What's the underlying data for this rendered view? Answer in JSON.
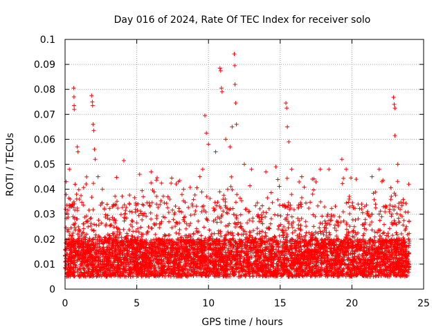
{
  "chart_data": {
    "type": "scatter",
    "title": "Day 016 of 2024, Rate Of TEC Index for receiver solo",
    "xlabel": "GPS time / hours",
    "ylabel": "ROTI / TECUs",
    "xlim": [
      0,
      25
    ],
    "ylim": [
      0,
      0.1
    ],
    "x_ticks": [
      0,
      5,
      10,
      15,
      20,
      25
    ],
    "x_tick_labels": [
      "0",
      "5",
      "10",
      "15",
      "20",
      "25"
    ],
    "y_ticks": [
      0,
      0.01,
      0.02,
      0.03,
      0.04,
      0.05,
      0.06,
      0.07,
      0.08,
      0.09,
      0.1
    ],
    "y_tick_labels": [
      "0",
      "0.01",
      "0.02",
      "0.03",
      "0.04",
      "0.05",
      "0.06",
      "0.07",
      "0.08",
      "0.09",
      "0.1"
    ],
    "grid": true,
    "marker": "+",
    "color": "#ff0000",
    "x_range_of_data": [
      0,
      24
    ],
    "series": [
      {
        "name": "ROTI",
        "points": [
          [
            0.1,
            0.011
          ],
          [
            0.2,
            0.024
          ],
          [
            0.3,
            0.048
          ],
          [
            0.35,
            0.036
          ],
          [
            0.45,
            0.033
          ],
          [
            0.6,
            0.0805
          ],
          [
            0.62,
            0.077
          ],
          [
            0.63,
            0.0735
          ],
          [
            0.64,
            0.072
          ],
          [
            0.7,
            0.042
          ],
          [
            0.8,
            0.038
          ],
          [
            0.85,
            0.057
          ],
          [
            0.9,
            0.055
          ],
          [
            1.0,
            0.036
          ],
          [
            1.5,
            0.022
          ],
          [
            1.85,
            0.0775
          ],
          [
            1.9,
            0.075
          ],
          [
            1.92,
            0.0735
          ],
          [
            1.95,
            0.066
          ],
          [
            2.0,
            0.0635
          ],
          [
            2.05,
            0.056
          ],
          [
            2.1,
            0.052
          ],
          [
            2.3,
            0.045
          ],
          [
            2.6,
            0.04
          ],
          [
            3.3,
            0.033
          ],
          [
            4.1,
            0.0515
          ],
          [
            4.5,
            0.034
          ],
          [
            5.2,
            0.046
          ],
          [
            6.0,
            0.047
          ],
          [
            7.3,
            0.036
          ],
          [
            7.9,
            0.043
          ],
          [
            9.4,
            0.045
          ],
          [
            9.6,
            0.048
          ],
          [
            9.75,
            0.0695
          ],
          [
            9.85,
            0.0625
          ],
          [
            10.0,
            0.058
          ],
          [
            10.5,
            0.055
          ],
          [
            10.8,
            0.0885
          ],
          [
            10.85,
            0.0875
          ],
          [
            10.9,
            0.0805
          ],
          [
            10.95,
            0.079
          ],
          [
            11.2,
            0.06
          ],
          [
            11.5,
            0.057
          ],
          [
            11.65,
            0.065
          ],
          [
            11.8,
            0.0942
          ],
          [
            11.83,
            0.0895
          ],
          [
            11.85,
            0.082
          ],
          [
            11.9,
            0.0745
          ],
          [
            11.95,
            0.066
          ],
          [
            12.5,
            0.05
          ],
          [
            13.0,
            0.048
          ],
          [
            14.0,
            0.047
          ],
          [
            14.7,
            0.049
          ],
          [
            15.4,
            0.0745
          ],
          [
            15.45,
            0.0725
          ],
          [
            15.5,
            0.065
          ],
          [
            15.6,
            0.059
          ],
          [
            15.8,
            0.048
          ],
          [
            16.5,
            0.045
          ],
          [
            17.8,
            0.048
          ],
          [
            18.4,
            0.048
          ],
          [
            19.3,
            0.052
          ],
          [
            19.6,
            0.048
          ],
          [
            20.3,
            0.044
          ],
          [
            21.4,
            0.045
          ],
          [
            21.9,
            0.048
          ],
          [
            22.1,
            0.043
          ],
          [
            22.9,
            0.0768
          ],
          [
            22.95,
            0.074
          ],
          [
            23.0,
            0.0725
          ],
          [
            23.0,
            0.0615
          ],
          [
            23.2,
            0.05
          ],
          [
            23.8,
            0.025
          ]
        ],
        "typical_band": [
          0.005,
          0.02
        ]
      }
    ]
  }
}
